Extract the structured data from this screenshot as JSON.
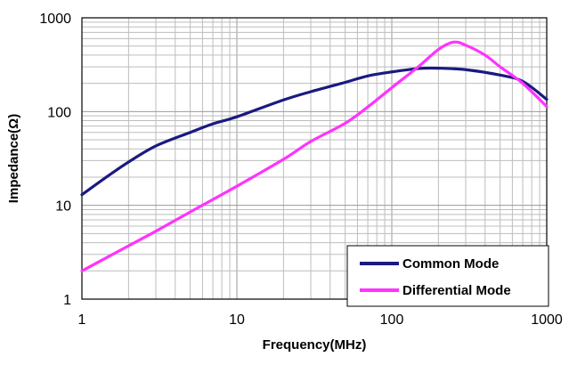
{
  "chart_data": {
    "type": "line",
    "xlabel": "Frequency(MHz)",
    "ylabel": "Impedance(Ω)",
    "x_scale": "log",
    "y_scale": "log",
    "xlim": [
      1,
      1000
    ],
    "ylim": [
      1,
      1000
    ],
    "x_ticks": [
      "1",
      "10",
      "100",
      "1000"
    ],
    "y_ticks": [
      "1",
      "10",
      "100",
      "1000"
    ],
    "grid": true,
    "legend_position": "bottom-right",
    "series": [
      {
        "name": "Common Mode",
        "color": "#1a1a80",
        "x": [
          1,
          1.5,
          2,
          3,
          5,
          7,
          10,
          20,
          30,
          50,
          70,
          100,
          150,
          200,
          300,
          500,
          700,
          1000
        ],
        "y": [
          13,
          21,
          29,
          43,
          60,
          74,
          88,
          133,
          163,
          205,
          240,
          265,
          288,
          290,
          280,
          245,
          210,
          135
        ]
      },
      {
        "name": "Differential Mode",
        "color": "#ff33ff",
        "x": [
          1,
          2,
          3,
          5,
          10,
          20,
          30,
          50,
          70,
          100,
          150,
          200,
          250,
          300,
          400,
          500,
          700,
          1000
        ],
        "y": [
          2,
          3.7,
          5.3,
          8.5,
          16,
          31,
          48,
          75,
          112,
          180,
          305,
          460,
          550,
          510,
          400,
          300,
          200,
          113
        ]
      }
    ]
  }
}
